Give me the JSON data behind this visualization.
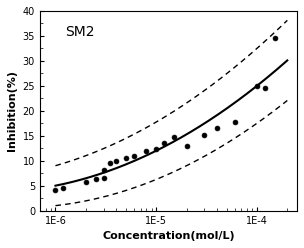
{
  "title": "SM2",
  "xlabel": "Concentration(mol/L)",
  "ylabel": "Inhibition(%)",
  "ylim": [
    0,
    40
  ],
  "yticks": [
    0,
    5,
    10,
    15,
    20,
    25,
    30,
    35,
    40
  ],
  "xtick_positions": [
    1e-06,
    1e-05,
    0.0001
  ],
  "xtick_labels": [
    "1E-6",
    "1E-5",
    "1E-4"
  ],
  "xlim": [
    7e-07,
    0.00025
  ],
  "data_points": [
    [
      1e-06,
      4.2
    ],
    [
      1.2e-06,
      4.6
    ],
    [
      2e-06,
      5.8
    ],
    [
      2.5e-06,
      6.3
    ],
    [
      3e-06,
      6.5
    ],
    [
      3e-06,
      8.2
    ],
    [
      3.5e-06,
      9.5
    ],
    [
      4e-06,
      10.0
    ],
    [
      5e-06,
      10.5
    ],
    [
      6e-06,
      11.0
    ],
    [
      8e-06,
      12.0
    ],
    [
      1e-05,
      12.3
    ],
    [
      1.2e-05,
      13.5
    ],
    [
      1.5e-05,
      14.8
    ],
    [
      2e-05,
      13.0
    ],
    [
      3e-05,
      15.2
    ],
    [
      4e-05,
      16.5
    ],
    [
      6e-05,
      17.8
    ],
    [
      0.0001,
      25.0
    ],
    [
      0.00012,
      24.5
    ],
    [
      0.00015,
      34.5
    ]
  ],
  "curve_color": "#000000",
  "point_color": "#000000",
  "dashed_color": "#000000",
  "background_color": "#ffffff",
  "title_fontsize": 10,
  "label_fontsize": 8,
  "tick_fontsize": 7
}
